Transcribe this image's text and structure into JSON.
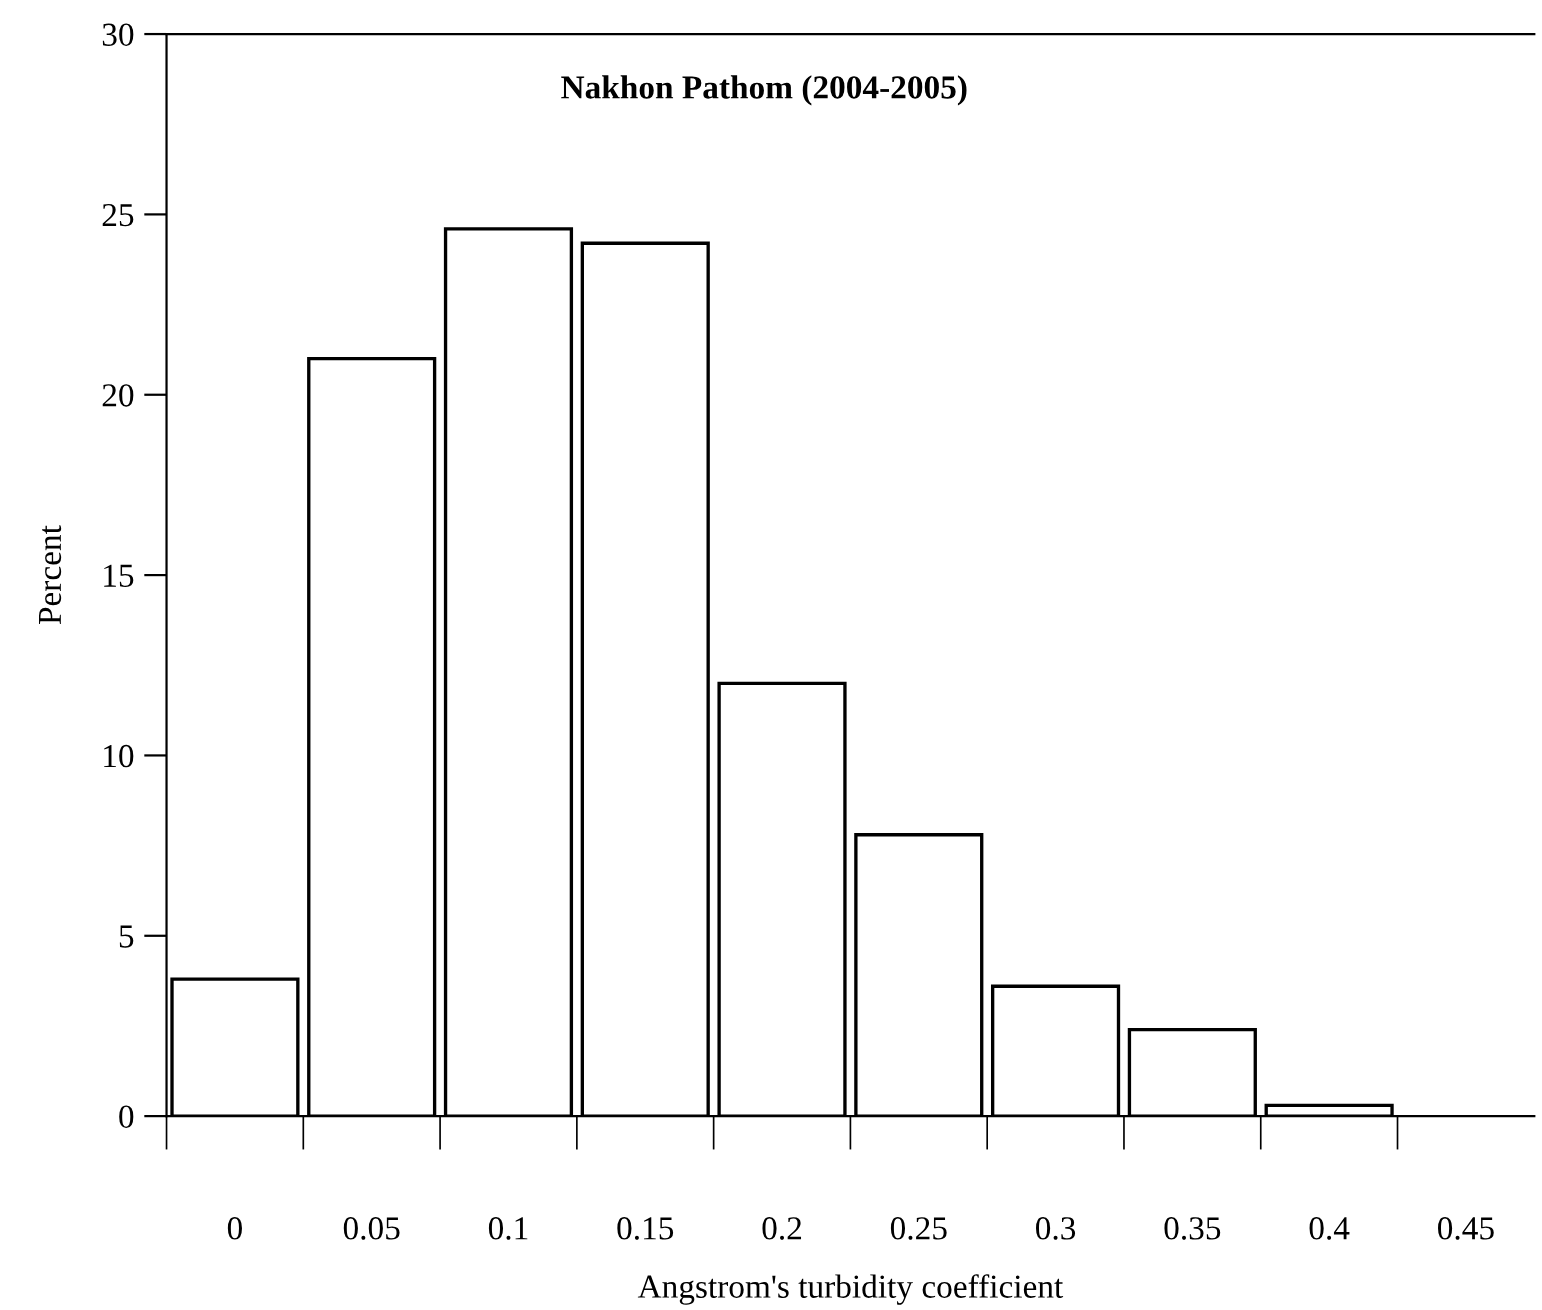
{
  "chart_data": {
    "type": "bar",
    "title": "Nakhon Pathom (2004-2005)",
    "xlabel": "Angstrom's turbidity coefficient",
    "ylabel": "Percent",
    "categories": [
      "0",
      "0.05",
      "0.1",
      "0.15",
      "0.2",
      "0.25",
      "0.3",
      "0.35",
      "0.4",
      "0.45"
    ],
    "values": [
      3.8,
      21.0,
      24.6,
      24.2,
      12.0,
      7.8,
      3.6,
      2.4,
      0.3,
      null
    ],
    "color": "#ffffff",
    "ylim": [
      0,
      30
    ],
    "yticks": [
      0,
      5,
      10,
      15,
      20,
      25,
      30
    ],
    "grid": false
  }
}
